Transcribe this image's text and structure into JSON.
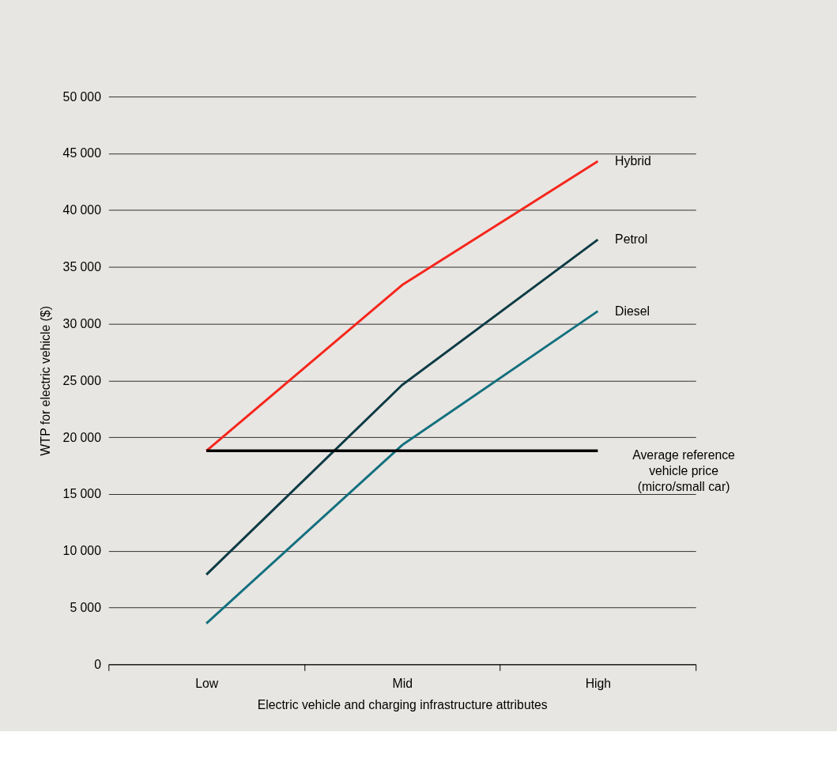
{
  "chart_data": {
    "type": "line",
    "xlabel": "Electric vehicle and charging infrastructure attributes",
    "ylabel": "WTP for electric vehicle ($)",
    "categories": [
      "Low",
      "Mid",
      "High"
    ],
    "series": [
      {
        "name": "Hybrid",
        "color": "#f5261c",
        "values": [
          18800,
          33400,
          44300
        ]
      },
      {
        "name": "Petrol",
        "color": "#0d3b45",
        "values": [
          7900,
          24600,
          37400
        ]
      },
      {
        "name": "Diesel",
        "color": "#13707f",
        "values": [
          3600,
          19300,
          31100
        ]
      }
    ],
    "ref_lines": [
      {
        "axis": "y",
        "value": 18800,
        "label": "Average reference vehicle price (micro/small car)",
        "color": "#000000"
      }
    ],
    "ylim": [
      0,
      50000
    ],
    "yticks": [
      0,
      {
        "value": 5000,
        "label": "5 000"
      },
      {
        "value": 10000,
        "label": "10 000"
      },
      {
        "value": 15000,
        "label": "15 000"
      },
      {
        "value": 20000,
        "label": "20 000"
      },
      {
        "value": 25000,
        "label": "25 000"
      },
      {
        "value": 30000,
        "label": "30 000"
      },
      {
        "value": 35000,
        "label": "35 000"
      },
      {
        "value": 40000,
        "label": "40 000"
      },
      {
        "value": 45000,
        "label": "45 000"
      },
      {
        "value": 50000,
        "label": "50 000"
      }
    ],
    "grid": "y",
    "legend": false,
    "marker": "none",
    "line_style": "solid"
  }
}
